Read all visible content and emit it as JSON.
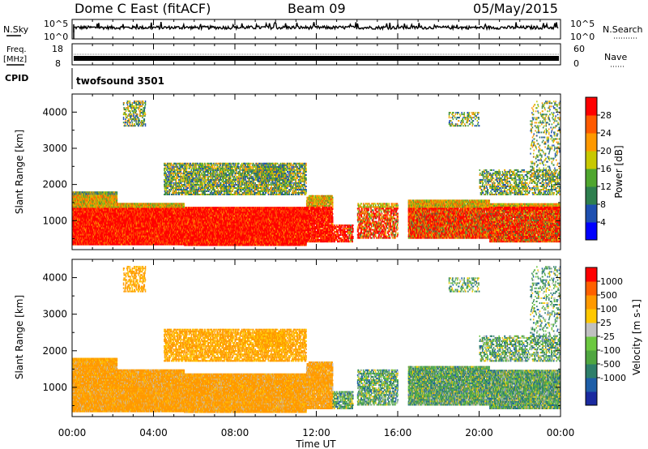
{
  "header": {
    "station": "Dome C East (fitACF)",
    "beam": "Beam 09",
    "date": "05/May/2015"
  },
  "strips": {
    "nsky_label": "N.Sky",
    "nsky_ticks": [
      "10^5",
      "10^0"
    ],
    "nsearch_label": "N.Search",
    "nsearch_ticks": [
      "10^5",
      "10^0"
    ],
    "freq_label": "Freq.",
    "freq_unit": "[MHz]",
    "freq_ticks": [
      "18",
      "8"
    ],
    "nave_label": "Nave",
    "nave_ticks": [
      "60",
      "0"
    ],
    "cpid_label": "CPID",
    "cpid_value": "twofsound 3501"
  },
  "chart_data": [
    {
      "type": "heatmap",
      "name": "power",
      "ylabel": "Slant Range [km]",
      "yticks": [
        "4000",
        "3000",
        "2000",
        "1000"
      ],
      "ylim": [
        200,
        4500
      ],
      "xlim": [
        0,
        24
      ],
      "colorbar": {
        "label": "Power [dB]",
        "ticks": [
          "28",
          "24",
          "20",
          "16",
          "12",
          "8",
          "4"
        ],
        "colors": [
          "#0000ff",
          "#1e4fb0",
          "#2e7f4e",
          "#4fa62e",
          "#c8c800",
          "#ff9900",
          "#ff5a00",
          "#ff0000"
        ]
      }
    },
    {
      "type": "heatmap",
      "name": "velocity",
      "ylabel": "Slant Range [km]",
      "yticks": [
        "4000",
        "3000",
        "2000",
        "1000"
      ],
      "ylim": [
        200,
        4500
      ],
      "xlim": [
        0,
        24
      ],
      "xticks": [
        "00:00",
        "04:00",
        "08:00",
        "12:00",
        "16:00",
        "20:00",
        "00:00"
      ],
      "xlabel": "Time UT",
      "colorbar": {
        "label": "Velocity [m s-1]",
        "ticks": [
          "1000",
          "500",
          "100",
          "25",
          "-25",
          "-100",
          "-500",
          "-1000"
        ],
        "colors": [
          "#1a2aa0",
          "#1e5ea8",
          "#2e7f6a",
          "#4fa640",
          "#6cc840",
          "#c0c0c0",
          "#ffc800",
          "#ff9900",
          "#ff6000",
          "#ff0000"
        ]
      }
    }
  ]
}
